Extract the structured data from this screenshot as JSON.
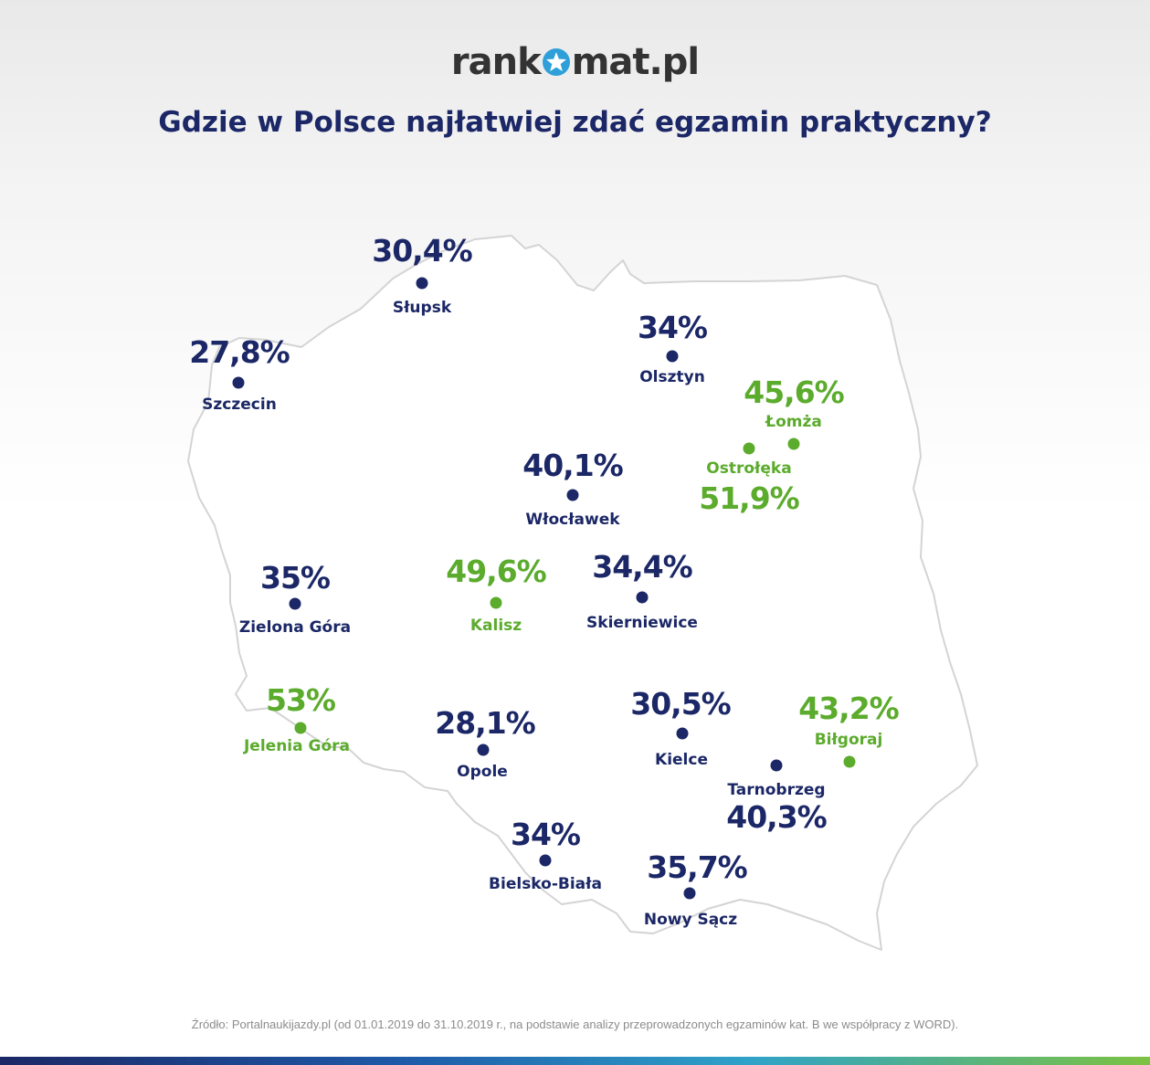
{
  "logo": {
    "text_before": "rank",
    "text_after": "mat.pl"
  },
  "title": "Gdzie w Polsce najłatwiej zdać egzamin praktyczny?",
  "colors": {
    "navy": "#1b2766",
    "green": "#5bab2c",
    "logo_star": "#2e9fd8",
    "map_fill": "#ffffff",
    "map_border": "#d4d4d4"
  },
  "cities": [
    {
      "name": "Słupsk",
      "value": "30,4%",
      "status": "navy"
    },
    {
      "name": "Szczecin",
      "value": "27,8%",
      "status": "navy"
    },
    {
      "name": "Olsztyn",
      "value": "34%",
      "status": "navy"
    },
    {
      "name": "Łomża",
      "value": "45,6%",
      "status": "green"
    },
    {
      "name": "Ostrołęka",
      "value": "51,9%",
      "status": "green"
    },
    {
      "name": "Włocławek",
      "value": "40,1%",
      "status": "navy"
    },
    {
      "name": "Zielona Góra",
      "value": "35%",
      "status": "navy"
    },
    {
      "name": "Kalisz",
      "value": "49,6%",
      "status": "green"
    },
    {
      "name": "Skierniewice",
      "value": "34,4%",
      "status": "navy"
    },
    {
      "name": "Jelenia Góra",
      "value": "53%",
      "status": "green"
    },
    {
      "name": "Opole",
      "value": "28,1%",
      "status": "navy"
    },
    {
      "name": "Kielce",
      "value": "30,5%",
      "status": "navy"
    },
    {
      "name": "Biłgoraj",
      "value": "43,2%",
      "status": "green"
    },
    {
      "name": "Tarnobrzeg",
      "value": "40,3%",
      "status": "navy"
    },
    {
      "name": "Bielsko-Biała",
      "value": "34%",
      "status": "navy"
    },
    {
      "name": "Nowy Sącz",
      "value": "35,7%",
      "status": "navy"
    }
  ],
  "source": "Źródło: Portalnaukijazdy.pl (od 01.01.2019 do 31.10.2019 r., na podstawie analizy przeprowadzonych egzaminów kat. B we współpracy z WORD)."
}
